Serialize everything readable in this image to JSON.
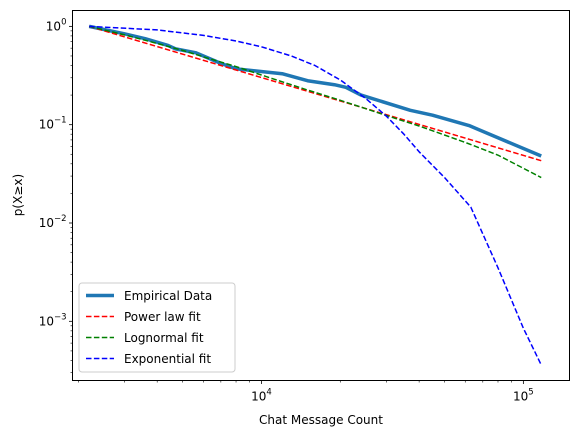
{
  "chart_data": {
    "type": "line",
    "title": "",
    "xlabel": "Chat Message Count",
    "ylabel": "p(X≥x)",
    "xscale": "log",
    "yscale": "log",
    "xlim": [
      1900,
      150000
    ],
    "ylim": [
      0.00025,
      1.45
    ],
    "grid": false,
    "legend_position": "lower-left",
    "xticks": [
      {
        "value": 10000,
        "base": "10",
        "exp": "4"
      },
      {
        "value": 100000,
        "base": "10",
        "exp": "5"
      }
    ],
    "yticks": [
      {
        "value": 1,
        "base": "10",
        "exp": "0"
      },
      {
        "value": 0.1,
        "base": "10",
        "exp": "−1"
      },
      {
        "value": 0.01,
        "base": "10",
        "exp": "−2"
      },
      {
        "value": 0.001,
        "base": "10",
        "exp": "−3"
      }
    ],
    "series": [
      {
        "name": "Empirical Data",
        "color": "#1f77b4",
        "style": "solid",
        "x": [
          2200,
          3000,
          3600,
          4400,
          4700,
          5600,
          7000,
          8000,
          12000,
          15000,
          19000,
          21000,
          24000,
          37000,
          45000,
          62000,
          117000
        ],
        "y": [
          1.0,
          0.84,
          0.75,
          0.64,
          0.59,
          0.54,
          0.42,
          0.37,
          0.33,
          0.28,
          0.255,
          0.24,
          0.2,
          0.14,
          0.125,
          0.098,
          0.048
        ]
      },
      {
        "name": "Power law fit",
        "color": "#ff0000",
        "style": "dashed",
        "x": [
          2200,
          117000
        ],
        "y": [
          1.0,
          0.043
        ]
      },
      {
        "name": "Lognormal fit",
        "color": "#008000",
        "style": "dashed",
        "x": [
          2200,
          3000,
          4000,
          5000,
          6000,
          8000,
          10000,
          15000,
          20000,
          30000,
          40000,
          60000,
          80000,
          117000
        ],
        "y": [
          1.0,
          0.82,
          0.67,
          0.57,
          0.49,
          0.39,
          0.32,
          0.225,
          0.177,
          0.124,
          0.097,
          0.066,
          0.049,
          0.029
        ]
      },
      {
        "name": "Exponential fit",
        "color": "#0000ff",
        "style": "dashed",
        "x": [
          2200,
          4000,
          6000,
          8000,
          10000,
          13000,
          16000,
          20000,
          25000,
          30000,
          35000,
          40000,
          50000,
          63000,
          80000,
          100000,
          117000
        ],
        "y": [
          1.0,
          0.92,
          0.81,
          0.71,
          0.62,
          0.5,
          0.4,
          0.285,
          0.185,
          0.122,
          0.08,
          0.053,
          0.029,
          0.0145,
          0.0035,
          0.00085,
          0.00036
        ]
      }
    ]
  }
}
